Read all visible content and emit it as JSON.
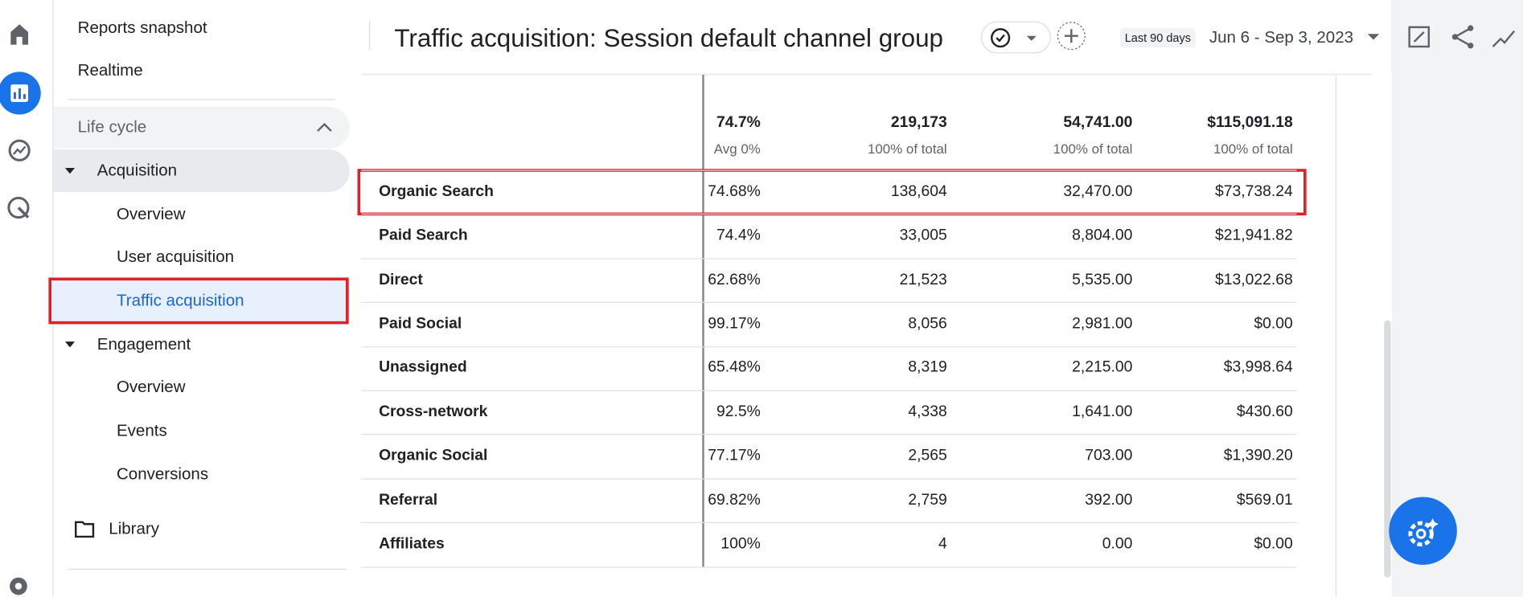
{
  "nav": [
    "Reports snapshot",
    "Realtime",
    "Life cycle",
    "Acquisition",
    "Overview",
    "User acquisition",
    "Traffic acquisition",
    "Engagement",
    "Overview",
    "Events",
    "Conversions",
    "Library"
  ],
  "header": {
    "title": "Traffic acquisition: Session default channel group",
    "date_badge": "Last 90 days",
    "date_range": "Jun 6 - Sep 3, 2023"
  },
  "table": {
    "totals": [
      {
        "value": "74.7%",
        "sub": "Avg 0%"
      },
      {
        "value": "219,173",
        "sub": "100% of total"
      },
      {
        "value": "54,741.00",
        "sub": "100% of total"
      },
      {
        "value": "$115,091.18",
        "sub": "100% of total"
      }
    ],
    "rows": [
      [
        "Organic Search",
        "74.68%",
        "138,604",
        "32,470.00",
        "$73,738.24"
      ],
      [
        "Paid Search",
        "74.4%",
        "33,005",
        "8,804.00",
        "$21,941.82"
      ],
      [
        "Direct",
        "62.68%",
        "21,523",
        "5,535.00",
        "$13,022.68"
      ],
      [
        "Paid Social",
        "99.17%",
        "8,056",
        "2,981.00",
        "$0.00"
      ],
      [
        "Unassigned",
        "65.48%",
        "8,319",
        "2,215.00",
        "$3,998.64"
      ],
      [
        "Cross-network",
        "92.5%",
        "4,338",
        "1,641.00",
        "$430.60"
      ],
      [
        "Organic Social",
        "77.17%",
        "2,565",
        "703.00",
        "$1,390.20"
      ],
      [
        "Referral",
        "69.82%",
        "2,759",
        "392.00",
        "$569.01"
      ],
      [
        "Affiliates",
        "100%",
        "4",
        "0.00",
        "$0.00"
      ]
    ]
  }
}
